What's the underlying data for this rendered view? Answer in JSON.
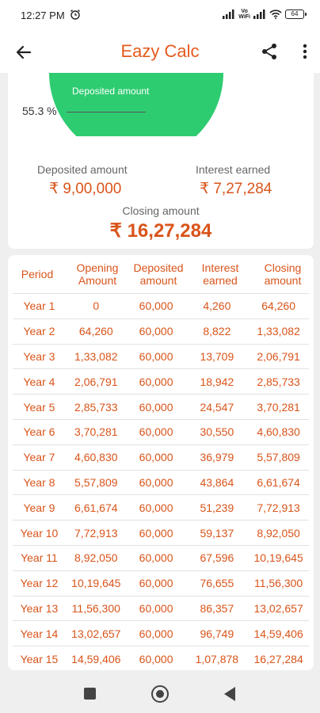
{
  "status_bar": {
    "time": "12:27 PM",
    "vowifi_line1": "Vo",
    "vowifi_line2": "WiFi",
    "battery": "64"
  },
  "app_bar": {
    "title": "Eazy Calc"
  },
  "summary": {
    "pie_deposited_label": "Deposited amount",
    "percent_label": "55.3 %",
    "deposited_caption": "Deposited amount",
    "deposited_value": "₹ 9,00,000",
    "interest_caption": "Interest earned",
    "interest_value": "₹ 7,27,284",
    "closing_caption": "Closing amount",
    "closing_value": "₹ 16,27,284",
    "colors": {
      "deposited": "#2ecc71",
      "accent": "#d9541a"
    }
  },
  "table": {
    "headers": [
      "Period",
      "Opening\nAmount",
      "Deposited\namount",
      "Interest\nearned",
      "Closing\namount"
    ],
    "rows": [
      [
        "Year 1",
        "0",
        "60,000",
        "4,260",
        "64,260"
      ],
      [
        "Year 2",
        "64,260",
        "60,000",
        "8,822",
        "1,33,082"
      ],
      [
        "Year 3",
        "1,33,082",
        "60,000",
        "13,709",
        "2,06,791"
      ],
      [
        "Year 4",
        "2,06,791",
        "60,000",
        "18,942",
        "2,85,733"
      ],
      [
        "Year 5",
        "2,85,733",
        "60,000",
        "24,547",
        "3,70,281"
      ],
      [
        "Year 6",
        "3,70,281",
        "60,000",
        "30,550",
        "4,60,830"
      ],
      [
        "Year 7",
        "4,60,830",
        "60,000",
        "36,979",
        "5,57,809"
      ],
      [
        "Year 8",
        "5,57,809",
        "60,000",
        "43,864",
        "6,61,674"
      ],
      [
        "Year 9",
        "6,61,674",
        "60,000",
        "51,239",
        "7,72,913"
      ],
      [
        "Year 10",
        "7,72,913",
        "60,000",
        "59,137",
        "8,92,050"
      ],
      [
        "Year 11",
        "8,92,050",
        "60,000",
        "67,596",
        "10,19,645"
      ],
      [
        "Year 12",
        "10,19,645",
        "60,000",
        "76,655",
        "11,56,300"
      ],
      [
        "Year 13",
        "11,56,300",
        "60,000",
        "86,357",
        "13,02,657"
      ],
      [
        "Year 14",
        "13,02,657",
        "60,000",
        "96,749",
        "14,59,406"
      ],
      [
        "Year 15",
        "14,59,406",
        "60,000",
        "1,07,878",
        "16,27,284"
      ]
    ]
  },
  "icons": {
    "back": "arrow-left-icon",
    "share": "share-icon",
    "more": "more-vert-icon",
    "nav_recents": "square-icon",
    "nav_home": "circle-icon",
    "nav_back": "triangle-back-icon"
  }
}
